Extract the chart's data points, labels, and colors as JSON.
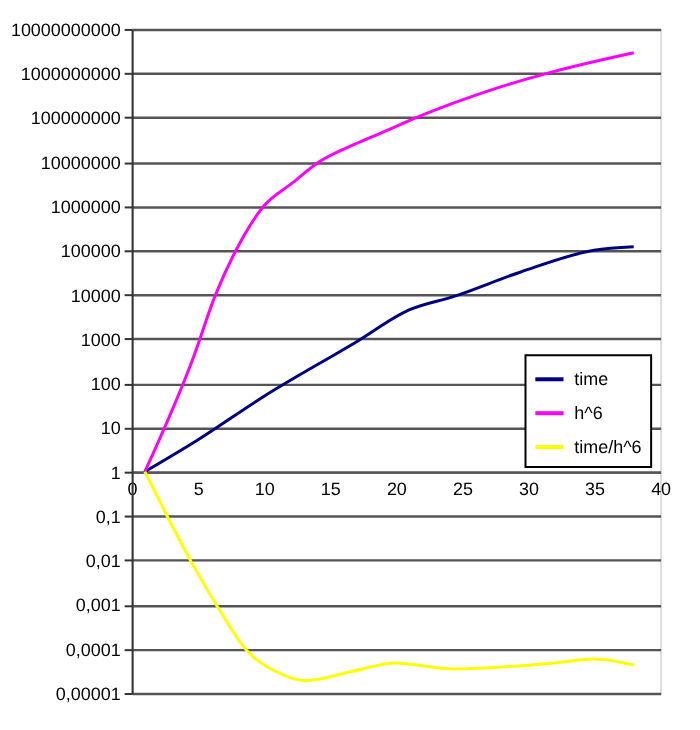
{
  "chart_data": {
    "type": "line",
    "log": "y",
    "xlim": [
      0,
      40
    ],
    "xticks": [
      0,
      5,
      10,
      15,
      20,
      25,
      30,
      35,
      40
    ],
    "ylim": [
      1e-05,
      10000000000
    ],
    "yticks": [
      {
        "value": 1e-05,
        "label": "0,00001"
      },
      {
        "value": 0.0001,
        "label": "0,0001"
      },
      {
        "value": 0.001,
        "label": "0,001"
      },
      {
        "value": 0.01,
        "label": "0,01"
      },
      {
        "value": 0.1,
        "label": "0,1"
      },
      1,
      10,
      100,
      1000,
      10000,
      100000,
      1000000,
      10000000,
      100000000,
      1000000000,
      10000000000
    ],
    "grid": "y",
    "legend": "right",
    "marker": "none",
    "line_style": "solid",
    "series": [
      {
        "name": "time",
        "color": "#000080",
        "x": [
          1,
          5,
          10,
          17,
          21,
          24.4,
          29.4,
          35,
          38
        ],
        "values": [
          1,
          5.2,
          50,
          850,
          4500,
          9100,
          32000,
          100000,
          120000
        ]
      },
      {
        "name": "h^6",
        "color": "#ff00ff",
        "x": [
          1,
          4.7,
          6.3,
          8.1,
          10,
          12.1,
          14.2,
          16.9,
          18.9,
          21.9,
          27,
          32,
          38
        ],
        "values": [
          1,
          400,
          9100,
          130000,
          1000000,
          3200000,
          10000000,
          25000000,
          45000000,
          110000000,
          400000000,
          1100000000,
          2900000000
        ]
      },
      {
        "name": "time/h^6",
        "color": "#ffff00",
        "x": [
          1,
          4.5,
          6.6,
          8.6,
          11.2,
          13.1,
          16.9,
          19.9,
          24.4,
          32,
          35,
          38
        ],
        "values": [
          1,
          0.0093,
          0.00079,
          0.0001,
          2.8e-05,
          1.9e-05,
          3.2e-05,
          4.8e-05,
          3.5e-05,
          4.8e-05,
          5.9e-05,
          4.3e-05
        ]
      }
    ]
  }
}
